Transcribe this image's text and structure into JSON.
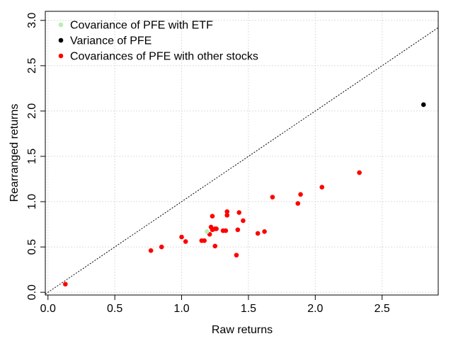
{
  "chart_data": {
    "type": "scatter",
    "xlabel": "Raw returns",
    "ylabel": "Rearranged returns",
    "xlim": [
      -0.02,
      2.92
    ],
    "ylim": [
      -0.03,
      3.1
    ],
    "xticks": [
      "0.0",
      "0.5",
      "1.0",
      "1.5",
      "2.0",
      "2.5"
    ],
    "yticks": [
      "0.0",
      "0.5",
      "1.0",
      "1.5",
      "2.0",
      "2.5",
      "3.0"
    ],
    "grid": true,
    "reference_line": "y = x",
    "legend_position": "top-left",
    "series": [
      {
        "name": "Covariance of PFE with ETF",
        "color": "#b8f0b0",
        "points": [
          [
            1.19,
            0.67
          ]
        ]
      },
      {
        "name": "Variance of PFE",
        "color": "#000000",
        "points": [
          [
            2.81,
            2.07
          ]
        ]
      },
      {
        "name": "Covariances of PFE with other stocks",
        "color": "#ff0000",
        "points": [
          [
            0.13,
            0.09
          ],
          [
            0.77,
            0.46
          ],
          [
            0.85,
            0.5
          ],
          [
            1.0,
            0.61
          ],
          [
            1.03,
            0.56
          ],
          [
            1.15,
            0.57
          ],
          [
            1.17,
            0.57
          ],
          [
            1.21,
            0.64
          ],
          [
            1.22,
            0.72
          ],
          [
            1.23,
            0.84
          ],
          [
            1.23,
            0.69
          ],
          [
            1.25,
            0.7
          ],
          [
            1.25,
            0.51
          ],
          [
            1.26,
            0.7
          ],
          [
            1.31,
            0.68
          ],
          [
            1.33,
            0.68
          ],
          [
            1.34,
            0.89
          ],
          [
            1.34,
            0.85
          ],
          [
            1.41,
            0.41
          ],
          [
            1.42,
            0.69
          ],
          [
            1.43,
            0.88
          ],
          [
            1.46,
            0.79
          ],
          [
            1.57,
            0.65
          ],
          [
            1.62,
            0.67
          ],
          [
            1.68,
            1.05
          ],
          [
            1.87,
            0.98
          ],
          [
            1.89,
            1.08
          ],
          [
            2.05,
            1.16
          ],
          [
            2.33,
            1.32
          ]
        ]
      }
    ]
  }
}
